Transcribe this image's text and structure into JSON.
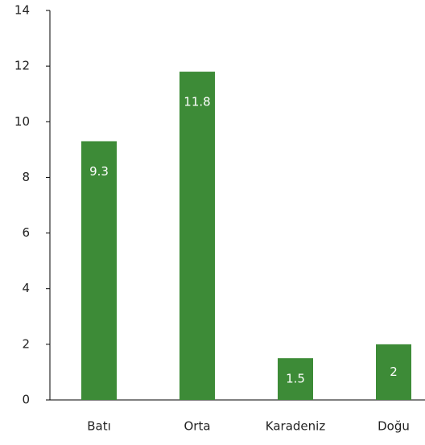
{
  "chart_data": {
    "type": "bar",
    "categories": [
      "Batı",
      "Orta",
      "Karadeniz",
      "Doğu"
    ],
    "values": [
      9.3,
      11.8,
      1.5,
      2
    ],
    "color": "#3d8b37",
    "ylim": [
      0,
      14
    ],
    "yticks": [
      0,
      2,
      4,
      6,
      8,
      10,
      12,
      14
    ],
    "grid": false
  }
}
